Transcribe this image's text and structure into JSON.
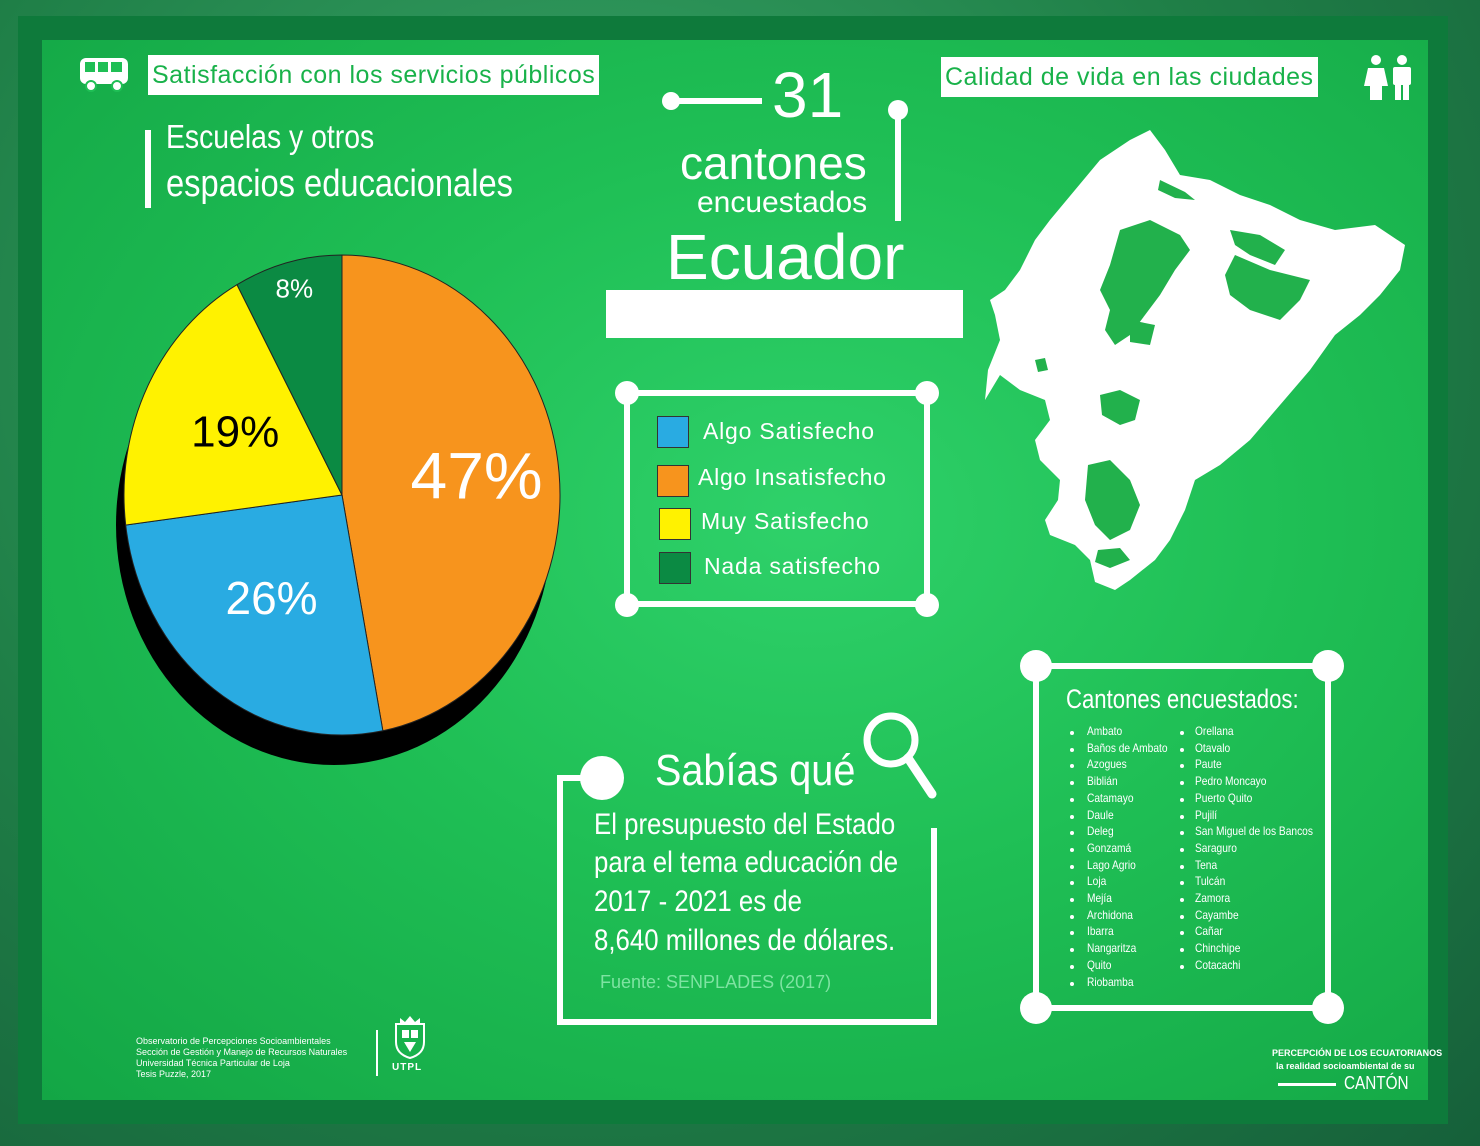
{
  "header": {
    "left_label": "Satisfacción con los servicios públicos",
    "right_label": "Calidad de vida en las ciudades",
    "left_icon": "bus-icon",
    "right_icon": "people-icon"
  },
  "chart_data": {
    "type": "pie",
    "title_line1": "Escuelas y otros",
    "title_line2": "espacios educacionales",
    "slices": [
      {
        "name": "Algo Insatisfecho",
        "value": 47,
        "label": "47%",
        "color": "#f7941d"
      },
      {
        "name": "Algo Satisfecho",
        "value": 26,
        "label": "26%",
        "color": "#29abe2"
      },
      {
        "name": "Muy Satisfecho",
        "value": 19,
        "label": "19%",
        "color": "#fff200"
      },
      {
        "name": "Nada satisfecho",
        "value": 8,
        "label": "8%",
        "color": "#0b8a43"
      }
    ],
    "legend": [
      {
        "label": "Algo Satisfecho",
        "color": "#29abe2"
      },
      {
        "label": "Algo Insatisfecho",
        "color": "#f7941d"
      },
      {
        "label": "Muy Satisfecho",
        "color": "#fff200"
      },
      {
        "label": "Nada satisfecho",
        "color": "#0b8a43"
      }
    ]
  },
  "headline": {
    "number": "31",
    "word": "cantones",
    "sub": "encuestados",
    "country": "Ecuador"
  },
  "fact": {
    "title": "Sabías qué",
    "lines": [
      "El presupuesto del Estado",
      "para el tema educación de",
      "2017 - 2021 es de",
      "8,640 millones de dólares."
    ],
    "source": "Fuente: SENPLADES (2017)",
    "icon": "magnifier-icon"
  },
  "cantons": {
    "title": "Cantones encuestados:",
    "col1": [
      "Ambato",
      "Baños de Ambato",
      "Azogues",
      "Biblián",
      "Catamayo",
      "Daule",
      "Deleg",
      "Gonzamá",
      "Lago Agrio",
      "Loja",
      "Mejía",
      "Archidona",
      "Ibarra",
      "Nangaritza",
      "Quito",
      "Riobamba"
    ],
    "col2": [
      "Orellana",
      "Otavalo",
      "Paute",
      "Pedro Moncayo",
      "Puerto Quito",
      "Pujilí",
      "San Miguel de los Bancos",
      "Saraguro",
      "Tena",
      "Tulcán",
      "Zamora",
      "Cayambe",
      "Cañar",
      "Chinchipe",
      "Cotacachi"
    ]
  },
  "footer": {
    "credits": [
      "Observatorio de Percepciones Socioambientales",
      "Sección de Gestión y Manejo de Recursos Naturales",
      "Universidad Técnica Particular de Loja",
      "Tesis Puzzle, 2017"
    ],
    "logo_text": "UTPL",
    "brand_line1": "PERCEPCIÓN DE LOS ECUATORIANOS",
    "brand_line2": "la realidad socioambiental de su",
    "brand_line3": "CANTÓN"
  }
}
